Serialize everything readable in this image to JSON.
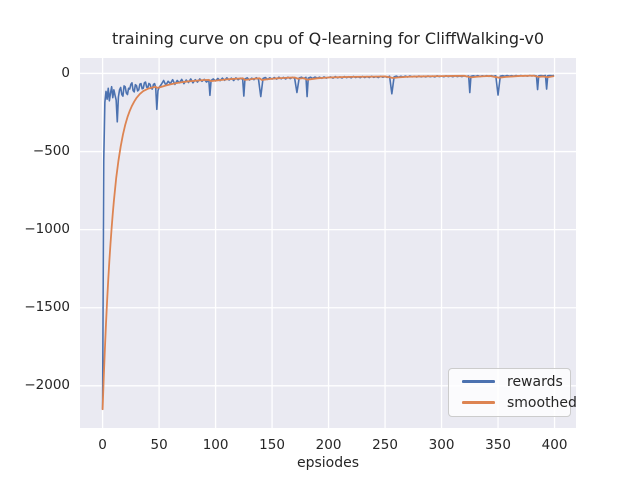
{
  "figure": {
    "title": "training curve on cpu of Q-learning for CliffWalking-v0",
    "xlabel": "epsiodes"
  },
  "colors": {
    "figure_bg": "#ffffff",
    "axes_bg": "#eaeaf2",
    "grid": "#ffffff",
    "text": "#262626",
    "rewards_line": "#4c72b0",
    "smoothed_line": "#dd8452",
    "legend_border": "#cccccc"
  },
  "legend": {
    "items": [
      {
        "label": "rewards",
        "color": "#4c72b0"
      },
      {
        "label": "smoothed",
        "color": "#dd8452"
      }
    ]
  },
  "chart_data": {
    "type": "line",
    "title": "training curve on cpu of Q-learning for CliffWalking-v0",
    "xlabel": "epsiodes",
    "ylabel": "",
    "xlim": [
      -20,
      419
    ],
    "ylim": [
      -2270,
      99
    ],
    "xticks": [
      0,
      50,
      100,
      150,
      200,
      250,
      300,
      350,
      400
    ],
    "yticks": [
      0,
      -500,
      -1000,
      -1500,
      -2000
    ],
    "grid": true,
    "legend_position": "lower right",
    "series": [
      {
        "name": "rewards",
        "color": "#4c72b0",
        "points": [
          [
            0,
            -2150
          ],
          [
            1,
            -560
          ],
          [
            2,
            -185
          ],
          [
            3,
            -115
          ],
          [
            4,
            -165
          ],
          [
            5,
            -95
          ],
          [
            6,
            -175
          ],
          [
            7,
            -125
          ],
          [
            8,
            -85
          ],
          [
            9,
            -155
          ],
          [
            10,
            -105
          ],
          [
            11,
            -140
          ],
          [
            12,
            -170
          ],
          [
            13,
            -310
          ],
          [
            14,
            -150
          ],
          [
            15,
            -105
          ],
          [
            16,
            -90
          ],
          [
            17,
            -135
          ],
          [
            18,
            -145
          ],
          [
            19,
            -80
          ],
          [
            20,
            -85
          ],
          [
            21,
            -125
          ],
          [
            22,
            -135
          ],
          [
            23,
            -95
          ],
          [
            24,
            -100
          ],
          [
            25,
            -70
          ],
          [
            26,
            -60
          ],
          [
            27,
            -110
          ],
          [
            28,
            -118
          ],
          [
            29,
            -72
          ],
          [
            30,
            -78
          ],
          [
            31,
            -112
          ],
          [
            32,
            -105
          ],
          [
            33,
            -68
          ],
          [
            34,
            -65
          ],
          [
            35,
            -98
          ],
          [
            36,
            -95
          ],
          [
            37,
            -60
          ],
          [
            38,
            -55
          ],
          [
            39,
            -88
          ],
          [
            40,
            -92
          ],
          [
            41,
            -64
          ],
          [
            42,
            -70
          ],
          [
            43,
            -95
          ],
          [
            44,
            -100
          ],
          [
            45,
            -70
          ],
          [
            46,
            -65
          ],
          [
            47,
            -90
          ],
          [
            48,
            -230
          ],
          [
            49,
            -110
          ],
          [
            50,
            -90
          ],
          [
            52,
            -70
          ],
          [
            54,
            -45
          ],
          [
            56,
            -75
          ],
          [
            58,
            -50
          ],
          [
            60,
            -65
          ],
          [
            62,
            -40
          ],
          [
            64,
            -70
          ],
          [
            66,
            -45
          ],
          [
            68,
            -60
          ],
          [
            70,
            -38
          ],
          [
            72,
            -65
          ],
          [
            74,
            -42
          ],
          [
            76,
            -58
          ],
          [
            78,
            -35
          ],
          [
            80,
            -60
          ],
          [
            82,
            -40
          ],
          [
            84,
            -55
          ],
          [
            86,
            -35
          ],
          [
            88,
            -50
          ],
          [
            90,
            -38
          ],
          [
            92,
            -55
          ],
          [
            94,
            -40
          ],
          [
            95,
            -140
          ],
          [
            96,
            -45
          ],
          [
            98,
            -35
          ],
          [
            100,
            -48
          ],
          [
            102,
            -32
          ],
          [
            104,
            -46
          ],
          [
            106,
            -30
          ],
          [
            108,
            -44
          ],
          [
            110,
            -28
          ],
          [
            112,
            -42
          ],
          [
            114,
            -30
          ],
          [
            116,
            -45
          ],
          [
            118,
            -28
          ],
          [
            120,
            -40
          ],
          [
            122,
            -30
          ],
          [
            124,
            -38
          ],
          [
            125,
            -145
          ],
          [
            126,
            -35
          ],
          [
            128,
            -28
          ],
          [
            130,
            -42
          ],
          [
            132,
            -30
          ],
          [
            134,
            -40
          ],
          [
            136,
            -27
          ],
          [
            138,
            -38
          ],
          [
            140,
            -148
          ],
          [
            142,
            -32
          ],
          [
            144,
            -26
          ],
          [
            146,
            -38
          ],
          [
            148,
            -28
          ],
          [
            150,
            -36
          ],
          [
            152,
            -26
          ],
          [
            154,
            -36
          ],
          [
            156,
            -24
          ],
          [
            158,
            -34
          ],
          [
            160,
            -25
          ],
          [
            162,
            -35
          ],
          [
            164,
            -24
          ],
          [
            166,
            -33
          ],
          [
            168,
            -25
          ],
          [
            170,
            -32
          ],
          [
            172,
            -122
          ],
          [
            174,
            -28
          ],
          [
            176,
            -24
          ],
          [
            178,
            -32
          ],
          [
            180,
            -25
          ],
          [
            181,
            -148
          ],
          [
            182,
            -30
          ],
          [
            184,
            -24
          ],
          [
            186,
            -32
          ],
          [
            188,
            -23
          ],
          [
            190,
            -30
          ],
          [
            192,
            -24
          ],
          [
            194,
            -31
          ],
          [
            196,
            -22
          ],
          [
            198,
            -30
          ],
          [
            200,
            -25
          ],
          [
            202,
            -22
          ],
          [
            204,
            -30
          ],
          [
            206,
            -20
          ],
          [
            208,
            -28
          ],
          [
            210,
            -22
          ],
          [
            212,
            -29
          ],
          [
            214,
            -20
          ],
          [
            216,
            -27
          ],
          [
            218,
            -21
          ],
          [
            220,
            -28
          ],
          [
            222,
            -19
          ],
          [
            224,
            -26
          ],
          [
            226,
            -21
          ],
          [
            228,
            -27
          ],
          [
            230,
            -19
          ],
          [
            232,
            -26
          ],
          [
            234,
            -20
          ],
          [
            236,
            -26
          ],
          [
            238,
            -18
          ],
          [
            240,
            -25
          ],
          [
            242,
            -20
          ],
          [
            244,
            -26
          ],
          [
            246,
            -18
          ],
          [
            248,
            -24
          ],
          [
            250,
            -20
          ],
          [
            252,
            -25
          ],
          [
            254,
            -18
          ],
          [
            256,
            -130
          ],
          [
            258,
            -22
          ],
          [
            260,
            -17
          ],
          [
            262,
            -24
          ],
          [
            264,
            -18
          ],
          [
            266,
            -23
          ],
          [
            268,
            -17
          ],
          [
            270,
            -23
          ],
          [
            272,
            -16
          ],
          [
            274,
            -22
          ],
          [
            276,
            -18
          ],
          [
            278,
            -23
          ],
          [
            280,
            -16
          ],
          [
            282,
            -22
          ],
          [
            284,
            -17
          ],
          [
            286,
            -22
          ],
          [
            288,
            -16
          ],
          [
            290,
            -21
          ],
          [
            292,
            -17
          ],
          [
            294,
            -22
          ],
          [
            296,
            -15
          ],
          [
            298,
            -20
          ],
          [
            300,
            -17
          ],
          [
            302,
            -21
          ],
          [
            304,
            -15
          ],
          [
            306,
            -20
          ],
          [
            308,
            -16
          ],
          [
            310,
            -21
          ],
          [
            312,
            -15
          ],
          [
            314,
            -20
          ],
          [
            316,
            -16
          ],
          [
            318,
            -20
          ],
          [
            320,
            -15
          ],
          [
            322,
            -19
          ],
          [
            324,
            -16
          ],
          [
            325,
            -122
          ],
          [
            326,
            -18
          ],
          [
            328,
            -15
          ],
          [
            330,
            -19
          ],
          [
            332,
            -14
          ],
          [
            334,
            -19
          ],
          [
            336,
            -15
          ],
          [
            338,
            -18
          ],
          [
            340,
            -14
          ],
          [
            342,
            -19
          ],
          [
            344,
            -14
          ],
          [
            346,
            -18
          ],
          [
            348,
            -15
          ],
          [
            350,
            -138
          ],
          [
            352,
            -17
          ],
          [
            354,
            -14
          ],
          [
            356,
            -18
          ],
          [
            358,
            -13
          ],
          [
            360,
            -17
          ],
          [
            362,
            -14
          ],
          [
            364,
            -17
          ],
          [
            366,
            -13
          ],
          [
            368,
            -17
          ],
          [
            370,
            -13
          ],
          [
            372,
            -16
          ],
          [
            374,
            -14
          ],
          [
            376,
            -17
          ],
          [
            378,
            -13
          ],
          [
            380,
            -16
          ],
          [
            382,
            -13
          ],
          [
            384,
            -16
          ],
          [
            385,
            -103
          ],
          [
            386,
            -15
          ],
          [
            388,
            -13
          ],
          [
            390,
            -15
          ],
          [
            392,
            -13
          ],
          [
            393,
            -100
          ],
          [
            394,
            -14
          ],
          [
            396,
            -13
          ],
          [
            398,
            -14
          ],
          [
            399,
            -13
          ]
        ]
      },
      {
        "name": "smoothed",
        "color": "#dd8452",
        "points": [
          [
            0,
            -2150
          ],
          [
            1,
            -1950
          ],
          [
            2,
            -1768
          ],
          [
            3,
            -1603
          ],
          [
            4,
            -1455
          ],
          [
            5,
            -1320
          ],
          [
            6,
            -1198
          ],
          [
            7,
            -1088
          ],
          [
            8,
            -988
          ],
          [
            9,
            -897
          ],
          [
            10,
            -815
          ],
          [
            12,
            -672
          ],
          [
            14,
            -560
          ],
          [
            16,
            -468
          ],
          [
            18,
            -392
          ],
          [
            20,
            -330
          ],
          [
            22,
            -280
          ],
          [
            24,
            -240
          ],
          [
            26,
            -207
          ],
          [
            28,
            -180
          ],
          [
            30,
            -157
          ],
          [
            33,
            -131
          ],
          [
            36,
            -113
          ],
          [
            40,
            -98
          ],
          [
            44,
            -90
          ],
          [
            47,
            -85
          ],
          [
            48,
            -92
          ],
          [
            50,
            -90
          ],
          [
            52,
            -86
          ],
          [
            56,
            -77
          ],
          [
            60,
            -70
          ],
          [
            65,
            -62
          ],
          [
            70,
            -56
          ],
          [
            75,
            -51
          ],
          [
            80,
            -48
          ],
          [
            85,
            -45
          ],
          [
            90,
            -42
          ],
          [
            94,
            -41
          ],
          [
            96,
            -49
          ],
          [
            100,
            -46
          ],
          [
            105,
            -42
          ],
          [
            110,
            -38
          ],
          [
            115,
            -35
          ],
          [
            120,
            -33
          ],
          [
            124,
            -31
          ],
          [
            126,
            -41
          ],
          [
            130,
            -38
          ],
          [
            134,
            -34
          ],
          [
            139,
            -31
          ],
          [
            141,
            -42
          ],
          [
            146,
            -37
          ],
          [
            150,
            -34
          ],
          [
            155,
            -31
          ],
          [
            160,
            -29
          ],
          [
            165,
            -27
          ],
          [
            170,
            -26
          ],
          [
            173,
            -34
          ],
          [
            178,
            -30
          ],
          [
            181,
            -40
          ],
          [
            186,
            -35
          ],
          [
            190,
            -31
          ],
          [
            195,
            -28
          ],
          [
            200,
            -26
          ],
          [
            210,
            -24
          ],
          [
            220,
            -22
          ],
          [
            230,
            -21
          ],
          [
            240,
            -20
          ],
          [
            250,
            -19
          ],
          [
            257,
            -29
          ],
          [
            262,
            -25
          ],
          [
            270,
            -21
          ],
          [
            280,
            -19
          ],
          [
            290,
            -18
          ],
          [
            300,
            -17
          ],
          [
            310,
            -16
          ],
          [
            320,
            -15
          ],
          [
            326,
            -25
          ],
          [
            331,
            -21
          ],
          [
            337,
            -18
          ],
          [
            343,
            -16
          ],
          [
            351,
            -27
          ],
          [
            357,
            -22
          ],
          [
            363,
            -19
          ],
          [
            369,
            -16
          ],
          [
            375,
            -15
          ],
          [
            381,
            -14
          ],
          [
            386,
            -22
          ],
          [
            390,
            -19
          ],
          [
            394,
            -24
          ],
          [
            397,
            -20
          ],
          [
            399,
            -18
          ]
        ]
      }
    ]
  }
}
